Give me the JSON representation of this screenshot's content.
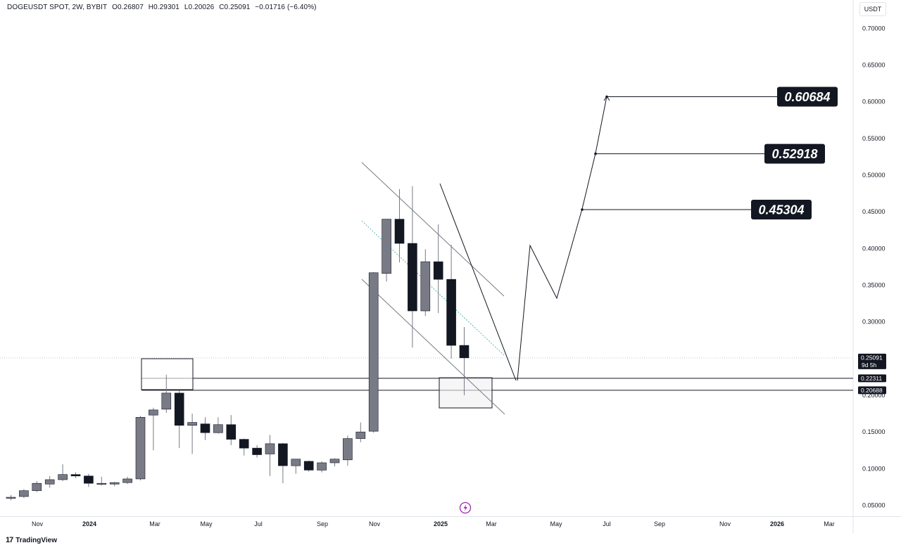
{
  "header": {
    "symbol": "DOGEUSDT SPOT, 2W, BYBIT",
    "open": "O0.26807",
    "high": "H0.29301",
    "low": "L0.20026",
    "close": "C0.25091",
    "change": "−0.01716 (−6.40%)"
  },
  "currency_button": "USDT",
  "brand": {
    "name": "TradingView",
    "logo_text": "17"
  },
  "chart_data": {
    "type": "candlestick",
    "title": "",
    "y_axis": {
      "min": 0.04,
      "max": 0.72,
      "ticks": [
        "0.05000",
        "0.10000",
        "0.15000",
        "0.20000",
        "0.25000",
        "0.30000",
        "0.35000",
        "0.40000",
        "0.45000",
        "0.50000",
        "0.55000",
        "0.60000",
        "0.65000",
        "0.70000"
      ]
    },
    "x_axis": {
      "ticks": [
        "Nov",
        "2024",
        "Mar",
        "May",
        "Jul",
        "Sep",
        "Nov",
        "2025",
        "Mar",
        "May",
        "Jul",
        "Sep",
        "Nov",
        "2026",
        "Mar"
      ],
      "bold_ticks": [
        "2024",
        "2025",
        "2026"
      ]
    },
    "colors": {
      "up": "#787b86",
      "down": "#131722",
      "wick": "#787b86",
      "line": "#131722",
      "dotted_guide": "#26a69a"
    },
    "candles": [
      {
        "o": 0.06,
        "h": 0.064,
        "l": 0.057,
        "c": 0.061
      },
      {
        "o": 0.062,
        "h": 0.072,
        "l": 0.06,
        "c": 0.07
      },
      {
        "o": 0.07,
        "h": 0.083,
        "l": 0.068,
        "c": 0.08
      },
      {
        "o": 0.079,
        "h": 0.09,
        "l": 0.074,
        "c": 0.085
      },
      {
        "o": 0.085,
        "h": 0.106,
        "l": 0.083,
        "c": 0.092
      },
      {
        "o": 0.092,
        "h": 0.095,
        "l": 0.087,
        "c": 0.09
      },
      {
        "o": 0.09,
        "h": 0.093,
        "l": 0.075,
        "c": 0.08
      },
      {
        "o": 0.079,
        "h": 0.089,
        "l": 0.077,
        "c": 0.08
      },
      {
        "o": 0.079,
        "h": 0.082,
        "l": 0.076,
        "c": 0.081
      },
      {
        "o": 0.081,
        "h": 0.089,
        "l": 0.079,
        "c": 0.086
      },
      {
        "o": 0.086,
        "h": 0.172,
        "l": 0.084,
        "c": 0.17
      },
      {
        "o": 0.173,
        "h": 0.183,
        "l": 0.125,
        "c": 0.18
      },
      {
        "o": 0.181,
        "h": 0.228,
        "l": 0.176,
        "c": 0.203
      },
      {
        "o": 0.203,
        "h": 0.206,
        "l": 0.128,
        "c": 0.159
      },
      {
        "o": 0.159,
        "h": 0.175,
        "l": 0.12,
        "c": 0.163
      },
      {
        "o": 0.161,
        "h": 0.17,
        "l": 0.139,
        "c": 0.149
      },
      {
        "o": 0.149,
        "h": 0.17,
        "l": 0.148,
        "c": 0.16
      },
      {
        "o": 0.16,
        "h": 0.173,
        "l": 0.132,
        "c": 0.14
      },
      {
        "o": 0.14,
        "h": 0.141,
        "l": 0.118,
        "c": 0.128
      },
      {
        "o": 0.128,
        "h": 0.132,
        "l": 0.115,
        "c": 0.119
      },
      {
        "o": 0.12,
        "h": 0.146,
        "l": 0.09,
        "c": 0.134
      },
      {
        "o": 0.134,
        "h": 0.135,
        "l": 0.08,
        "c": 0.104
      },
      {
        "o": 0.104,
        "h": 0.113,
        "l": 0.093,
        "c": 0.113
      },
      {
        "o": 0.11,
        "h": 0.111,
        "l": 0.096,
        "c": 0.098
      },
      {
        "o": 0.098,
        "h": 0.11,
        "l": 0.095,
        "c": 0.108
      },
      {
        "o": 0.108,
        "h": 0.114,
        "l": 0.103,
        "c": 0.113
      },
      {
        "o": 0.112,
        "h": 0.145,
        "l": 0.104,
        "c": 0.141
      },
      {
        "o": 0.141,
        "h": 0.163,
        "l": 0.136,
        "c": 0.15
      },
      {
        "o": 0.151,
        "h": 0.368,
        "l": 0.149,
        "c": 0.367
      },
      {
        "o": 0.366,
        "h": 0.44,
        "l": 0.355,
        "c": 0.44
      },
      {
        "o": 0.44,
        "h": 0.481,
        "l": 0.381,
        "c": 0.407
      },
      {
        "o": 0.407,
        "h": 0.485,
        "l": 0.265,
        "c": 0.315
      },
      {
        "o": 0.315,
        "h": 0.399,
        "l": 0.308,
        "c": 0.382
      },
      {
        "o": 0.382,
        "h": 0.433,
        "l": 0.312,
        "c": 0.358
      },
      {
        "o": 0.358,
        "h": 0.405,
        "l": 0.25,
        "c": 0.268
      },
      {
        "o": 0.268,
        "h": 0.293,
        "l": 0.2,
        "c": 0.251
      }
    ],
    "price_labels": [
      {
        "value": 0.25091,
        "text": "0.25091",
        "sub": "9d 5h"
      },
      {
        "value": 0.22311,
        "text": "0.22311"
      },
      {
        "value": 0.20688,
        "text": "0.20688"
      }
    ],
    "targets": [
      {
        "value": 0.60684,
        "text": "0.60684"
      },
      {
        "value": 0.52918,
        "text": "0.52918"
      },
      {
        "value": 0.45304,
        "text": "0.45304"
      }
    ]
  }
}
